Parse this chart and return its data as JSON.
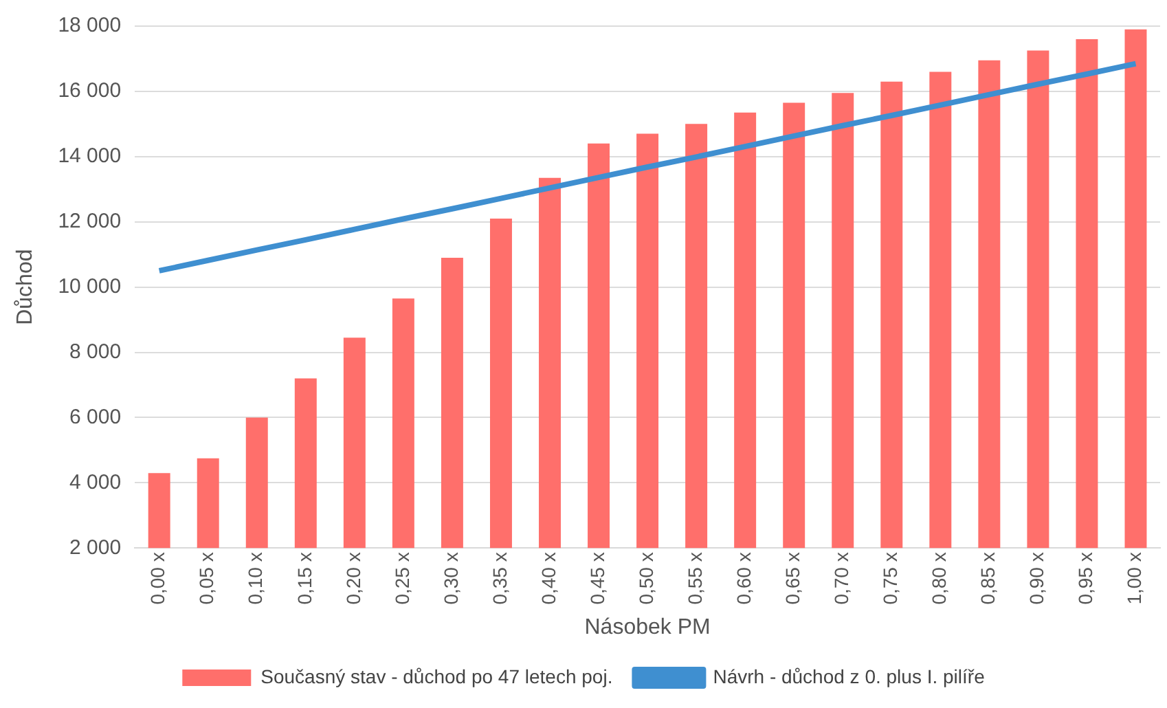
{
  "chart_data": {
    "type": "bar",
    "xlabel": "Násobek PM",
    "ylabel": "Důchod",
    "categories": [
      "0,00 x",
      "0,05 x",
      "0,10 x",
      "0,15 x",
      "0,20 x",
      "0,25 x",
      "0,30 x",
      "0,35 x",
      "0,40 x",
      "0,45 x",
      "0,50 x",
      "0,55 x",
      "0,60 x",
      "0,65 x",
      "0,70 x",
      "0,75 x",
      "0,80 x",
      "0,85 x",
      "0,90 x",
      "0,95 x",
      "1,00 x"
    ],
    "series": [
      {
        "name": "Současný stav - důchod po 47 letech poj.",
        "color": "#ff6f6b",
        "values": [
          4300,
          4750,
          6000,
          7200,
          8450,
          9650,
          10900,
          12100,
          13350,
          14400,
          14700,
          15000,
          15350,
          15650,
          15950,
          16300,
          16600,
          16950,
          17250,
          17600,
          17900
        ]
      },
      {
        "name": "Návrh - důchod z 0. plus I. pilíře",
        "type": "line",
        "color": "#3f8fd0",
        "values": [
          10500,
          10820,
          11140,
          11450,
          11770,
          12090,
          12400,
          12720,
          13040,
          13360,
          13680,
          13990,
          14310,
          14630,
          14950,
          15260,
          15580,
          15900,
          16220,
          16530,
          16850
        ]
      }
    ],
    "ylim": [
      2000,
      18000
    ],
    "yticks": [
      {
        "value": 2000,
        "label": "2 000"
      },
      {
        "value": 4000,
        "label": "4 000"
      },
      {
        "value": 6000,
        "label": "6 000"
      },
      {
        "value": 8000,
        "label": "8 000"
      },
      {
        "value": 10000,
        "label": "10 000"
      },
      {
        "value": 12000,
        "label": "12 000"
      },
      {
        "value": 14000,
        "label": "14 000"
      },
      {
        "value": 16000,
        "label": "16 000"
      },
      {
        "value": 18000,
        "label": "18 000"
      }
    ],
    "grid": "y",
    "legend": "bottom",
    "marker": "none",
    "line_style": "solid"
  }
}
